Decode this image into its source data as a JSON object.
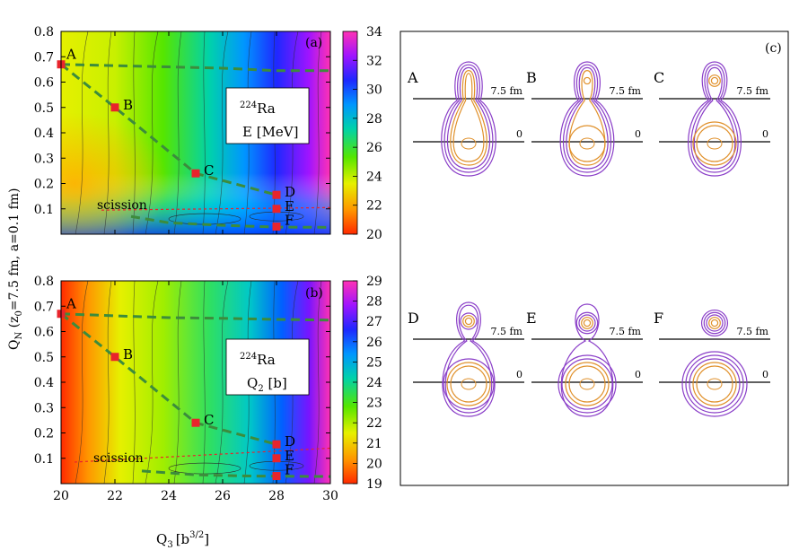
{
  "axes": {
    "x_label": "Q",
    "x_label_sub": "3",
    "x_label_unit": "[b",
    "x_label_unit_sup": "3/2",
    "x_label_unit_end": "]",
    "y_label": "Q",
    "y_label_sub": "N",
    "y_label_rest": " (z",
    "y_label_rest_sub": "0",
    "y_label_tail": "=7.5 fm, a=0.1 fm)"
  },
  "panels": {
    "a": {
      "tag": "(a)",
      "nucleus_mass": "224",
      "nucleus_symbol": "Ra",
      "quantity": "E [MeV]",
      "scission_label": "scission"
    },
    "b": {
      "tag": "(b)",
      "nucleus_mass": "224",
      "nucleus_symbol": "Ra",
      "quantity": "Q",
      "quantity_sub": "2",
      "quantity_unit": " [b]",
      "scission_label": "scission"
    },
    "c": {
      "tag": "(c)"
    }
  },
  "shapes": [
    {
      "id": "A",
      "neck_label": "7.5 fm",
      "center_label": "0"
    },
    {
      "id": "B",
      "neck_label": "7.5 fm",
      "center_label": "0"
    },
    {
      "id": "C",
      "neck_label": "7.5 fm",
      "center_label": "0"
    },
    {
      "id": "D",
      "neck_label": "7.5 fm",
      "center_label": "0"
    },
    {
      "id": "E",
      "neck_label": "7.5 fm",
      "center_label": "0"
    },
    {
      "id": "F",
      "neck_label": "7.5 fm",
      "center_label": "0"
    }
  ],
  "colors": {
    "path": "#3c8c3c",
    "point": "#e8242c",
    "scission": "#e8242c",
    "contour": "#2a2a2a",
    "density_outer": "#8a3ec8",
    "density_inner": "#e0902a"
  },
  "chart_data": [
    {
      "type": "heatmap",
      "panel": "a",
      "quantity": "E [MeV]",
      "xlim": [
        20,
        30
      ],
      "ylim": [
        0,
        0.8
      ],
      "xticks": [
        20,
        22,
        24,
        26,
        28,
        30
      ],
      "yticks": [
        0.1,
        0.2,
        0.3,
        0.4,
        0.5,
        0.6,
        0.7,
        0.8
      ],
      "colorbar_range": [
        20,
        34
      ],
      "colorbar_ticks": [
        20,
        22,
        24,
        26,
        28,
        30,
        32,
        34
      ],
      "path_points": [
        {
          "label": "A",
          "x": 20.0,
          "y": 0.67
        },
        {
          "label": "B",
          "x": 22.0,
          "y": 0.5
        },
        {
          "label": "C",
          "x": 25.0,
          "y": 0.24
        },
        {
          "label": "D",
          "x": 28.0,
          "y": 0.155
        },
        {
          "label": "E",
          "x": 28.0,
          "y": 0.1
        },
        {
          "label": "F",
          "x": 28.0,
          "y": 0.03
        }
      ],
      "upper_valley": [
        [
          20.0,
          0.67
        ],
        [
          22,
          0.665
        ],
        [
          24,
          0.66
        ],
        [
          26,
          0.655
        ],
        [
          28,
          0.645
        ],
        [
          30,
          0.645
        ]
      ],
      "lower_valley": [
        [
          22.6,
          0.07
        ],
        [
          24,
          0.045
        ],
        [
          26,
          0.035
        ],
        [
          28,
          0.028
        ],
        [
          30,
          0.027
        ]
      ],
      "scission_line": [
        [
          21.5,
          0.095
        ],
        [
          30,
          0.105
        ]
      ]
    },
    {
      "type": "heatmap",
      "panel": "b",
      "quantity": "Q2 [b]",
      "xlim": [
        20,
        30
      ],
      "ylim": [
        0,
        0.8
      ],
      "xticks": [
        20,
        22,
        24,
        26,
        28,
        30
      ],
      "yticks": [
        0.1,
        0.2,
        0.3,
        0.4,
        0.5,
        0.6,
        0.7,
        0.8
      ],
      "colorbar_range": [
        19,
        29
      ],
      "colorbar_ticks": [
        19,
        20,
        21,
        22,
        23,
        24,
        25,
        26,
        27,
        28,
        29
      ],
      "path_points": [
        {
          "label": "A",
          "x": 20.0,
          "y": 0.67
        },
        {
          "label": "B",
          "x": 22.0,
          "y": 0.5
        },
        {
          "label": "C",
          "x": 25.0,
          "y": 0.24
        },
        {
          "label": "D",
          "x": 28.0,
          "y": 0.155
        },
        {
          "label": "E",
          "x": 28.0,
          "y": 0.1
        },
        {
          "label": "F",
          "x": 28.0,
          "y": 0.03
        }
      ],
      "upper_valley": [
        [
          20.0,
          0.67
        ],
        [
          22,
          0.662
        ],
        [
          24,
          0.655
        ],
        [
          26,
          0.652
        ],
        [
          28,
          0.648
        ],
        [
          30,
          0.645
        ]
      ],
      "lower_valley": [
        [
          23,
          0.05
        ],
        [
          25,
          0.035
        ],
        [
          27,
          0.03
        ],
        [
          30,
          0.028
        ]
      ],
      "scission_line": [
        [
          20.5,
          0.085
        ],
        [
          30,
          0.14
        ]
      ]
    }
  ]
}
